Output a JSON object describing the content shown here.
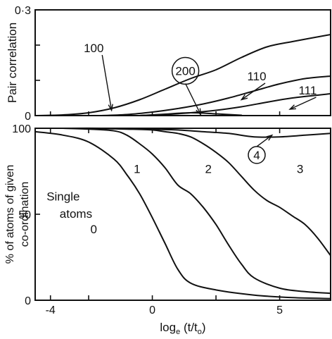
{
  "chart_data": [
    {
      "type": "line",
      "title": "",
      "xlabel": "",
      "ylabel": "Pair correlation",
      "xlim": [
        -4.6,
        7
      ],
      "ylim": [
        0,
        0.3
      ],
      "yticks": [
        {
          "value": 0,
          "label": "0"
        },
        {
          "value": 0.1,
          "label": ""
        },
        {
          "value": 0.2,
          "label": ""
        },
        {
          "value": 0.3,
          "label": "0·3"
        }
      ],
      "series": [
        {
          "name": "100",
          "x": [
            -4.6,
            -3.5,
            -2.5,
            -1.5,
            -0.5,
            0.5,
            1.5,
            2.5,
            3.5,
            4.5,
            5.5,
            7
          ],
          "y": [
            0,
            0.002,
            0.008,
            0.022,
            0.045,
            0.075,
            0.105,
            0.13,
            0.165,
            0.195,
            0.21,
            0.23
          ]
        },
        {
          "name": "110",
          "x": [
            -2,
            -1,
            0,
            1,
            2,
            3,
            4,
            5,
            6,
            7
          ],
          "y": [
            0,
            0.003,
            0.01,
            0.02,
            0.033,
            0.05,
            0.07,
            0.09,
            0.105,
            0.112
          ]
        },
        {
          "name": "111",
          "x": [
            -0.5,
            0.5,
            1.5,
            2.5,
            3.5,
            4.5,
            5.5,
            7
          ],
          "y": [
            0,
            0.003,
            0.008,
            0.015,
            0.025,
            0.038,
            0.05,
            0.062
          ]
        },
        {
          "name": "200",
          "x": [
            -0.5,
            0.5,
            1.5,
            2.5,
            3.5
          ],
          "y": [
            0,
            0.004,
            0.008,
            0.005,
            0.001
          ]
        }
      ],
      "annotations": [
        {
          "text": "100",
          "x": -2.3,
          "y": 0.18,
          "arrow_to": [
            -1.6,
            0.015
          ]
        },
        {
          "text": "200",
          "circled": true,
          "x": 1.3,
          "y": 0.115,
          "arrow_to": [
            1.9,
            0.003
          ]
        },
        {
          "text": "110",
          "x": 4.1,
          "y": 0.1,
          "arrow_to": [
            3.5,
            0.045
          ]
        },
        {
          "text": "111",
          "x": 6.1,
          "y": 0.06,
          "arrow_to": [
            5.4,
            0.018
          ]
        }
      ]
    },
    {
      "type": "line",
      "title": "",
      "xlabel": "loge (t/to)",
      "xlabel_parts": {
        "log": "log",
        "log_sub": "e",
        "arg_pre": " (t/t",
        "arg_sub": "o",
        "arg_post": ")"
      },
      "ylabel": "% of atoms of given co-ordination",
      "ylabel_lines": [
        "% of atoms of given",
        "co-ordination"
      ],
      "xlim": [
        -4.6,
        7
      ],
      "ylim": [
        0,
        100
      ],
      "xticks": [
        {
          "value": -4,
          "label": "-4"
        },
        {
          "value": -2.5,
          "label": ""
        },
        {
          "value": 0,
          "label": "0"
        },
        {
          "value": 2.5,
          "label": ""
        },
        {
          "value": 5,
          "label": "5"
        }
      ],
      "yticks": [
        {
          "value": 0,
          "label": "0"
        },
        {
          "value": 50,
          "label": "50"
        },
        {
          "value": 100,
          "label": "100"
        }
      ],
      "series": [
        {
          "name": "0",
          "x": [
            -4.6,
            -3.5,
            -2.5,
            -1.5,
            -1,
            -0.5,
            0,
            0.5,
            1,
            1.5,
            2.5,
            4,
            5.5,
            7
          ],
          "y": [
            98,
            96,
            92,
            82,
            73,
            62,
            48,
            33,
            18,
            10,
            6,
            3,
            1.5,
            1
          ]
        },
        {
          "name": "1",
          "x": [
            -3.5,
            -2.5,
            -1.5,
            -1,
            -0.5,
            0,
            0.5,
            1,
            1.5,
            2,
            2.5,
            3,
            3.5,
            4,
            5,
            6,
            7
          ],
          "y": [
            100,
            99.5,
            98.5,
            96,
            91,
            85,
            77,
            67,
            62,
            54,
            44,
            32,
            21,
            13,
            7,
            5,
            4
          ]
        },
        {
          "name": "2",
          "x": [
            -2.5,
            -1,
            0,
            0.5,
            1,
            1.5,
            2,
            2.5,
            3,
            3.5,
            4,
            4.5,
            5,
            5.5,
            6,
            6.5,
            7
          ],
          "y": [
            100,
            99.5,
            99,
            98,
            97,
            95,
            91,
            86,
            80,
            72,
            64,
            58,
            54,
            49,
            44,
            36,
            26
          ]
        },
        {
          "name": "3",
          "x": [
            -3.5,
            -2,
            -0.5,
            1,
            2,
            3,
            4,
            5,
            6,
            7
          ],
          "y": [
            100,
            100,
            99.5,
            99,
            98,
            97,
            95,
            95,
            96,
            97
          ]
        }
      ],
      "annotations": [
        {
          "text": "1",
          "x": -0.6,
          "y": 74
        },
        {
          "text": "2",
          "x": 2.2,
          "y": 74
        },
        {
          "text": "3",
          "x": 5.8,
          "y": 74
        },
        {
          "text": "4",
          "circled": true,
          "x": 4.1,
          "y": 82,
          "arrow_to": [
            4.7,
            96
          ]
        },
        {
          "text": "Single",
          "x": -3.5,
          "y": 58
        },
        {
          "text": "atoms",
          "x": -3.0,
          "y": 48
        },
        {
          "text": "0",
          "x": -2.3,
          "y": 39
        }
      ]
    }
  ]
}
